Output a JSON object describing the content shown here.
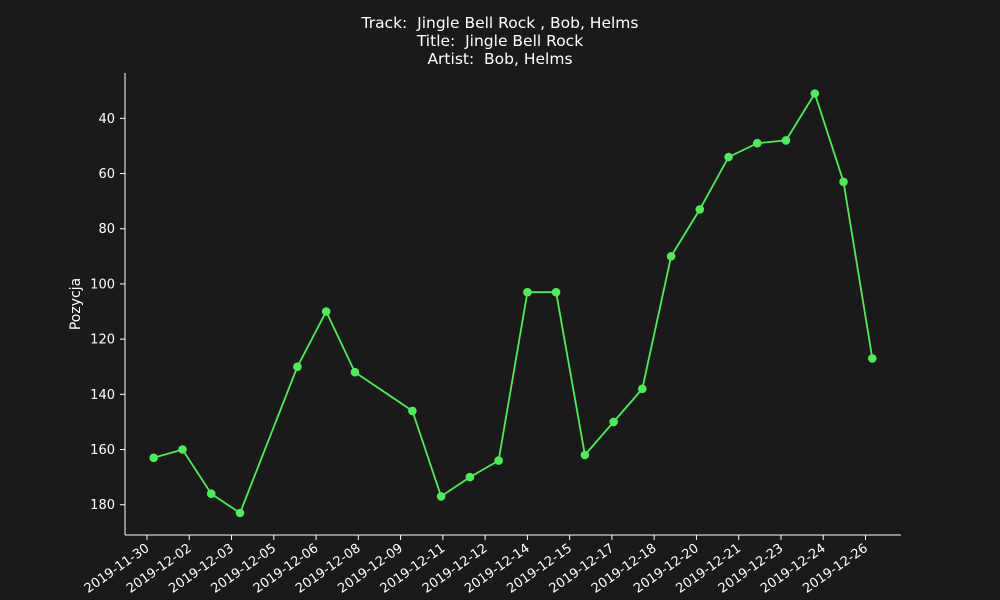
{
  "chart_data": {
    "type": "line",
    "title": {
      "track": "Track:  Jingle Bell Rock , Bob, Helms",
      "title": "Title:  Jingle Bell Rock",
      "artist": "Artist:  Bob, Helms"
    },
    "xlabel": "",
    "ylabel": "Pozycja",
    "y_inverted": true,
    "ylim": [
      30,
      190
    ],
    "y_ticks": [
      40,
      60,
      80,
      100,
      120,
      140,
      160,
      180
    ],
    "x_tick_labels": [
      "2019-11-30",
      "2019-12-02",
      "2019-12-03",
      "2019-12-05",
      "2019-12-06",
      "2019-12-08",
      "2019-12-09",
      "2019-12-11",
      "2019-12-12",
      "2019-12-14",
      "2019-12-15",
      "2019-12-17",
      "2019-12-18",
      "2019-12-20",
      "2019-12-21",
      "2019-12-23",
      "2019-12-24",
      "2019-12-26"
    ],
    "x_range": [
      "2019-11-29T12:00",
      "2019-12-26T12:00"
    ],
    "grid": false,
    "line_color": "#4ded57",
    "points": [
      {
        "x": "2019-11-30T12:00",
        "y": 163
      },
      {
        "x": "2019-12-01T12:00",
        "y": 160
      },
      {
        "x": "2019-12-02T12:00",
        "y": 176
      },
      {
        "x": "2019-12-03T12:00",
        "y": 183
      },
      {
        "x": "2019-12-05T12:00",
        "y": 130
      },
      {
        "x": "2019-12-06T12:00",
        "y": 110
      },
      {
        "x": "2019-12-07T12:00",
        "y": 132
      },
      {
        "x": "2019-12-09T12:00",
        "y": 146
      },
      {
        "x": "2019-12-10T12:00",
        "y": 177
      },
      {
        "x": "2019-12-11T12:00",
        "y": 170
      },
      {
        "x": "2019-12-12T12:00",
        "y": 164
      },
      {
        "x": "2019-12-13T12:00",
        "y": 103
      },
      {
        "x": "2019-12-14T12:00",
        "y": 103
      },
      {
        "x": "2019-12-15T12:00",
        "y": 162
      },
      {
        "x": "2019-12-16T12:00",
        "y": 150
      },
      {
        "x": "2019-12-17T12:00",
        "y": 138
      },
      {
        "x": "2019-12-18T12:00",
        "y": 90
      },
      {
        "x": "2019-12-19T12:00",
        "y": 73
      },
      {
        "x": "2019-12-20T12:00",
        "y": 54
      },
      {
        "x": "2019-12-21T12:00",
        "y": 49
      },
      {
        "x": "2019-12-22T12:00",
        "y": 48
      },
      {
        "x": "2019-12-23T12:00",
        "y": 31
      },
      {
        "x": "2019-12-24T12:00",
        "y": 63
      },
      {
        "x": "2019-12-25T12:00",
        "y": 127
      }
    ]
  }
}
